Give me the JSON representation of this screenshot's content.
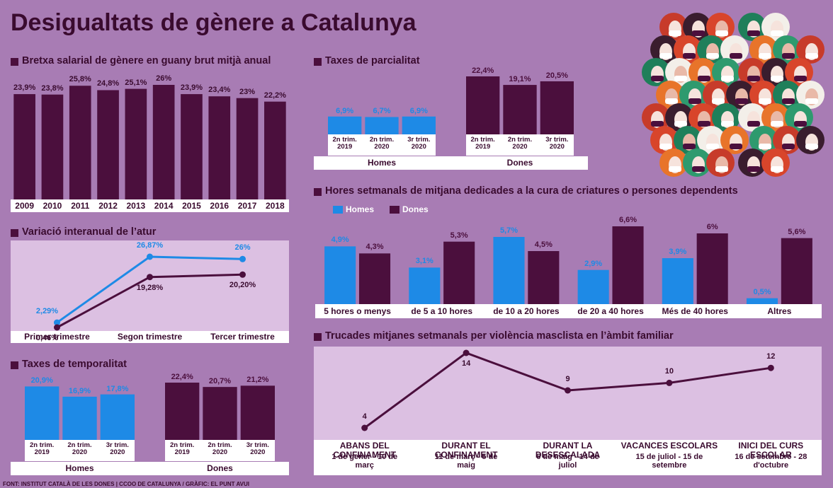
{
  "title": "Desigualtats de gènere a Catalunya",
  "source": "FONT: INSTITUT CATALÀ DE LES DONES | CCOO DE CATALUNYA / GRÀFIC: EL PUNT AVUI",
  "chart_data": [
    {
      "type": "bar",
      "title": "Bretxa salarial de gènere en guany brut mitjà anual",
      "categories": [
        "2009",
        "2010",
        "2011",
        "2012",
        "2013",
        "2014",
        "2015",
        "2016",
        "2017",
        "2018"
      ],
      "values": [
        23.9,
        23.8,
        25.8,
        24.8,
        25.1,
        26,
        23.9,
        23.4,
        23,
        22.2
      ],
      "value_labels": [
        "23,9%",
        "23,8%",
        "25,8%",
        "24,8%",
        "25,1%",
        "26%",
        "23,9%",
        "23,4%",
        "23%",
        "22,2%"
      ],
      "color": "#4b0f3d"
    },
    {
      "type": "groupbar",
      "title": "Taxes de parcialitat",
      "categories": [
        "2n trim. 2019",
        "2n trim. 2020",
        "3r trim. 2020"
      ],
      "series": [
        {
          "name": "Homes",
          "color": "#1e8ae6",
          "values": [
            6.9,
            6.7,
            6.9
          ],
          "value_labels": [
            "6,9%",
            "6,7%",
            "6,9%"
          ]
        },
        {
          "name": "Dones",
          "color": "#4b0f3d",
          "values": [
            22.4,
            19.1,
            20.5
          ],
          "value_labels": [
            "22,4%",
            "19,1%",
            "20,5%"
          ]
        }
      ]
    },
    {
      "type": "line",
      "title": "Variació interanual de l’atur",
      "categories": [
        "Primer trimestre",
        "Segon trimestre",
        "Tercer trimestre"
      ],
      "series": [
        {
          "color": "#1e8ae6",
          "values": [
            2.29,
            26.87,
            26
          ],
          "value_labels": [
            "2,29%",
            "26,87%",
            "26%"
          ]
        },
        {
          "color": "#4b0f3d",
          "values": [
            0.46,
            19.28,
            20.2
          ],
          "value_labels": [
            "0,46%",
            "19,28%",
            "20,20%"
          ]
        }
      ]
    },
    {
      "type": "groupbar",
      "title": "Taxes de temporalitat",
      "categories": [
        "2n trim. 2019",
        "2n trim. 2020",
        "3r trim. 2020"
      ],
      "series": [
        {
          "name": "Homes",
          "color": "#1e8ae6",
          "values": [
            20.9,
            16.9,
            17.8
          ],
          "value_labels": [
            "20,9%",
            "16,9%",
            "17,8%"
          ]
        },
        {
          "name": "Dones",
          "color": "#4b0f3d",
          "values": [
            22.4,
            20.7,
            21.2
          ],
          "value_labels": [
            "22,4%",
            "20,7%",
            "21,2%"
          ]
        }
      ]
    },
    {
      "type": "bar",
      "title": "Hores setmanals de mitjana dedicades a la cura de criatures o persones dependents",
      "categories": [
        "5 hores o menys",
        "de 5 a 10 hores",
        "de 10 a 20 hores",
        "de 20 a 40 hores",
        "Més de 40 hores",
        "Altres"
      ],
      "series": [
        {
          "name": "Homes",
          "color": "#1e8ae6",
          "values": [
            4.9,
            3.1,
            5.7,
            2.9,
            3.9,
            0.5
          ],
          "value_labels": [
            "4,9%",
            "3,1%",
            "5,7%",
            "2,9%",
            "3,9%",
            "0,5%"
          ]
        },
        {
          "name": "Dones",
          "color": "#4b0f3d",
          "values": [
            4.3,
            5.3,
            4.5,
            6.6,
            6,
            5.6
          ],
          "value_labels": [
            "4,3%",
            "5,3%",
            "4,5%",
            "6,6%",
            "6%",
            "5,6%"
          ]
        }
      ],
      "legend": "top-left"
    },
    {
      "type": "line",
      "title": "Trucades mitjanes setmanals per violència masclista en l’àmbit familiar",
      "categories": [
        "ABANS DEL CONFINAMENT",
        "DURANT EL CONFINAMENT",
        "DURANT LA DESESCALADA",
        "VACANCES ESCOLARS",
        "INICI DEL CURS ESCOLAR"
      ],
      "category_periods": [
        "1 de gener - 10 de març",
        "11 de març - 5 de maig",
        "6 de maig - 14 de juliol",
        "15 de juliol - 15 de setembre",
        "16 de setembre - 28 d'octubre"
      ],
      "series": [
        {
          "color": "#4b0f3d",
          "values": [
            4,
            14,
            9,
            10,
            12
          ]
        }
      ]
    }
  ]
}
